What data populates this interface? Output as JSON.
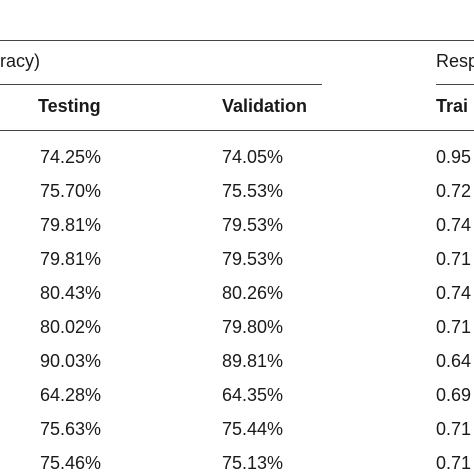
{
  "group_headers": {
    "accuracy": "racy)",
    "response": "Resp"
  },
  "columns": {
    "testing": "Testing",
    "validation": "Validation",
    "training": "Trai"
  },
  "rows": [
    {
      "testing": "74.25%",
      "validation": "74.05%",
      "training": "0.95"
    },
    {
      "testing": "75.70%",
      "validation": "75.53%",
      "training": "0.72"
    },
    {
      "testing": "79.81%",
      "validation": "79.53%",
      "training": "0.74"
    },
    {
      "testing": "79.81%",
      "validation": "79.53%",
      "training": "0.71"
    },
    {
      "testing": "80.43%",
      "validation": "80.26%",
      "training": "0.74"
    },
    {
      "testing": "80.02%",
      "validation": "79.80%",
      "training": "0.71"
    },
    {
      "testing": "90.03%",
      "validation": "89.81%",
      "training": "0.64"
    },
    {
      "testing": "64.28%",
      "validation": "64.35%",
      "training": "0.69"
    },
    {
      "testing": "75.63%",
      "validation": "75.44%",
      "training": "0.71"
    },
    {
      "testing": "75.46%",
      "validation": "75.13%",
      "training": "0.71"
    }
  ]
}
